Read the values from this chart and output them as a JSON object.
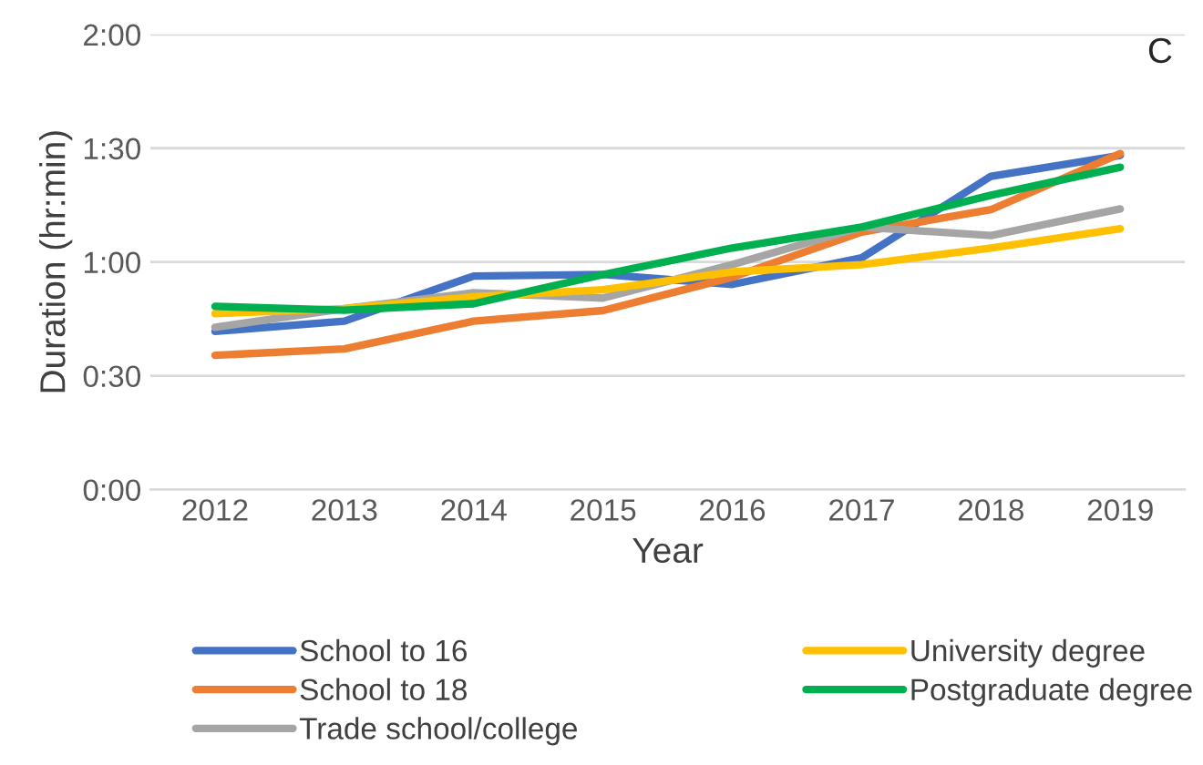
{
  "chart_data": {
    "type": "line",
    "categories": [
      "2012",
      "2013",
      "2014",
      "2015",
      "2016",
      "2017",
      "2018",
      "2019"
    ],
    "series": [
      {
        "name": "School to 16",
        "color": "#4472c4",
        "values": [
          41.7,
          44.4,
          56.3,
          56.7,
          54.1,
          61.1,
          82.6,
          88.1
        ]
      },
      {
        "name": "School to 18",
        "color": "#ed7d31",
        "values": [
          35.4,
          37.1,
          44.4,
          47.2,
          56.0,
          67.9,
          73.8,
          88.6
        ]
      },
      {
        "name": "Trade school/college",
        "color": "#a5a5a5",
        "values": [
          42.8,
          47.7,
          51.9,
          50.5,
          59.3,
          69.2,
          67.0,
          74.0
        ]
      },
      {
        "name": "University degree",
        "color": "#ffc000",
        "values": [
          46.4,
          47.7,
          50.8,
          52.7,
          57.4,
          59.3,
          63.7,
          68.8
        ]
      },
      {
        "name": "Postgraduate degree",
        "color": "#00b050",
        "values": [
          48.3,
          47.3,
          49.0,
          56.7,
          63.7,
          69.2,
          77.6,
          85.0
        ]
      }
    ],
    "xlabel": "Year",
    "ylabel": "Duration (hr:min)",
    "annotations": [
      "C"
    ],
    "ylim": [
      0,
      120
    ],
    "yticks": [
      {
        "value": 0,
        "label": "0:00"
      },
      {
        "value": 30,
        "label": "0:30"
      },
      {
        "value": 60,
        "label": "1:00"
      },
      {
        "value": 90,
        "label": "1:30"
      },
      {
        "value": 120,
        "label": "2:00"
      }
    ],
    "grid": "y",
    "legend": "bottom",
    "marker": "none",
    "line_style": "solid"
  }
}
